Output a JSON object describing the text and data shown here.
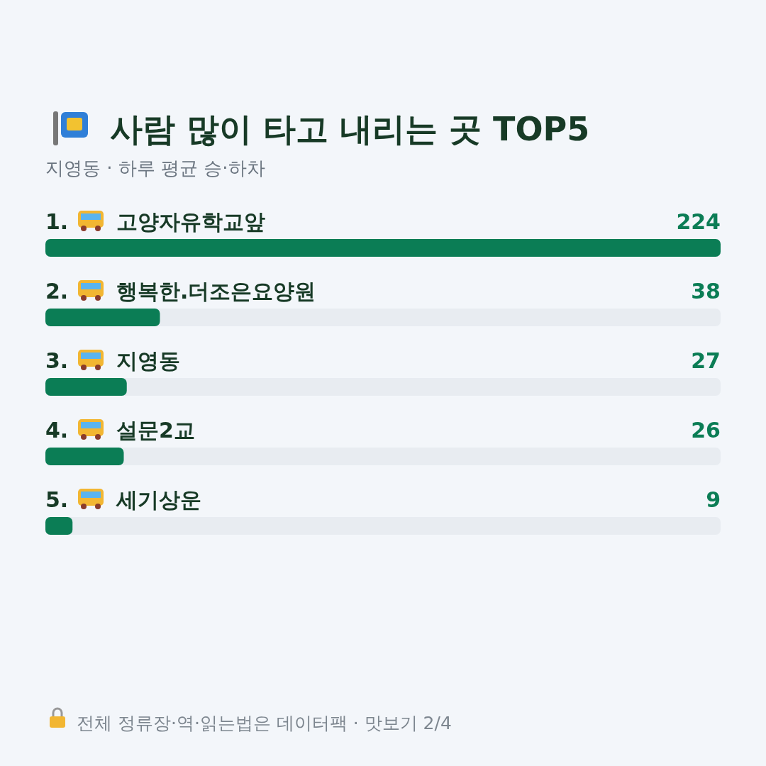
{
  "chart_data": {
    "type": "bar",
    "orientation": "horizontal",
    "title": "사람 많이 타고 내리는 곳 TOP5",
    "subtitle": "지영동 · 하루 평균 승·하차",
    "categories": [
      "1. 고양자유학교앞",
      "2. 행복한.더조은요양원",
      "3. 지영동",
      "4. 설문2교",
      "5. 세기상운"
    ],
    "values": [
      224,
      38,
      27,
      26,
      9
    ],
    "color": "#0b7d55",
    "xlim": [
      0,
      224
    ],
    "data_labels": true,
    "annotations": [
      "전체 정류장·역·읽는법은 데이터팩 · 맛보기 2/4"
    ]
  }
}
